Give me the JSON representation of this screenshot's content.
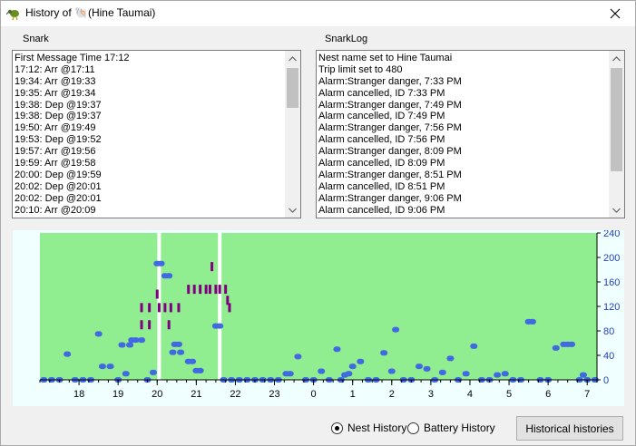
{
  "window": {
    "title": "History of 🐚(Hine Taumai)"
  },
  "snark": {
    "label": "Snark",
    "lines": [
      "First Message Time 17:12",
      "17:12: Arr    @17:11",
      "19:34: Arr     @19:33",
      "19:35: Arr     @19:34",
      "19:38: Dep     @19:37",
      "19:38: Dep     @19:37",
      "19:50: Arr     @19:49",
      "19:53: Dep     @19:52",
      "19:57: Arr     @19:56",
      "19:59: Arr     @19:58",
      "20:00: Dep     @19:59",
      "20:02: Dep     @20:01",
      "20:02: Dep     @20:01",
      "20:10: Arr     @20:09"
    ]
  },
  "snarklog": {
    "label": "SnarkLog",
    "lines": [
      "Nest name set to Hine Taumai",
      "Trip limit set to 480",
      "Alarm:Stranger danger, 7:33 PM",
      "Alarm cancelled, ID   7:33 PM",
      "Alarm:Stranger danger, 7:49 PM",
      "Alarm cancelled, ID   7:49 PM",
      "Alarm:Stranger danger, 7:56 PM",
      "Alarm cancelled, ID   7:56 PM",
      "Alarm:Stranger danger, 8:09 PM",
      "Alarm cancelled, ID   8:09 PM",
      "Alarm:Stranger danger, 8:51 PM",
      "Alarm cancelled, ID   8:51 PM",
      "Alarm:Stranger danger, 9:06 PM",
      "Alarm cancelled, ID   9:06 PM"
    ]
  },
  "chart_data": {
    "type": "scatter",
    "x_ticks": [
      "18",
      "19",
      "20",
      "21",
      "22",
      "23",
      "0",
      "1",
      "2",
      "3",
      "4",
      "5",
      "6",
      "7"
    ],
    "y_ticks": [
      0,
      40,
      80,
      120,
      160,
      200,
      240
    ],
    "ylim": [
      0,
      240
    ],
    "plot_background": "#90ee90",
    "series": [
      {
        "color": "#4169e1",
        "points": [
          [
            17.1,
            0
          ],
          [
            17.3,
            0
          ],
          [
            17.5,
            0
          ],
          [
            17.7,
            42
          ],
          [
            17.9,
            0
          ],
          [
            18.1,
            0
          ],
          [
            18.3,
            0
          ],
          [
            18.5,
            75
          ],
          [
            18.6,
            22
          ],
          [
            18.8,
            22
          ],
          [
            19.0,
            0
          ],
          [
            19.1,
            57
          ],
          [
            19.2,
            10
          ],
          [
            19.3,
            57
          ],
          [
            19.35,
            65
          ],
          [
            19.45,
            65
          ],
          [
            19.6,
            65
          ],
          [
            19.75,
            0
          ],
          [
            19.9,
            12
          ],
          [
            20.0,
            190
          ],
          [
            20.1,
            190
          ],
          [
            20.2,
            170
          ],
          [
            20.3,
            170
          ],
          [
            20.4,
            45
          ],
          [
            20.45,
            58
          ],
          [
            20.55,
            58
          ],
          [
            20.6,
            45
          ],
          [
            20.8,
            30
          ],
          [
            20.9,
            30
          ],
          [
            21.0,
            15
          ],
          [
            21.1,
            15
          ],
          [
            21.5,
            88
          ],
          [
            21.6,
            88
          ],
          [
            21.7,
            0
          ],
          [
            21.9,
            0
          ],
          [
            22.1,
            0
          ],
          [
            22.3,
            0
          ],
          [
            22.5,
            0
          ],
          [
            22.7,
            0
          ],
          [
            22.9,
            0
          ],
          [
            23.1,
            0
          ],
          [
            23.3,
            10
          ],
          [
            23.4,
            10
          ],
          [
            23.6,
            38
          ],
          [
            23.8,
            0
          ],
          [
            24.0,
            0
          ],
          [
            24.2,
            14
          ],
          [
            24.4,
            0
          ],
          [
            24.6,
            50
          ],
          [
            24.7,
            0
          ],
          [
            24.8,
            8
          ],
          [
            24.9,
            10
          ],
          [
            25.0,
            22
          ],
          [
            25.2,
            30
          ],
          [
            25.4,
            0
          ],
          [
            25.6,
            0
          ],
          [
            25.8,
            44
          ],
          [
            26.0,
            14
          ],
          [
            26.1,
            82
          ],
          [
            26.3,
            0
          ],
          [
            26.5,
            0
          ],
          [
            26.7,
            22
          ],
          [
            26.9,
            18
          ],
          [
            27.1,
            0
          ],
          [
            27.3,
            12
          ],
          [
            27.5,
            35
          ],
          [
            27.7,
            0
          ],
          [
            27.9,
            10
          ],
          [
            28.1,
            55
          ],
          [
            28.3,
            0
          ],
          [
            28.5,
            0
          ],
          [
            28.7,
            8
          ],
          [
            28.9,
            10
          ],
          [
            29.1,
            0
          ],
          [
            29.3,
            0
          ],
          [
            29.5,
            95
          ],
          [
            29.6,
            95
          ],
          [
            29.8,
            0
          ],
          [
            30.0,
            0
          ],
          [
            30.2,
            52
          ],
          [
            30.4,
            58
          ],
          [
            30.5,
            58
          ],
          [
            30.6,
            58
          ],
          [
            30.8,
            0
          ],
          [
            30.9,
            8
          ],
          [
            31.0,
            0
          ],
          [
            31.2,
            0
          ]
        ]
      },
      {
        "color": "#800080",
        "points": [
          [
            19.6,
            118
          ],
          [
            19.6,
            90
          ],
          [
            19.8,
            118
          ],
          [
            19.8,
            90
          ],
          [
            20.0,
            140
          ],
          [
            20.05,
            118
          ],
          [
            20.2,
            118
          ],
          [
            20.3,
            90
          ],
          [
            20.35,
            118
          ],
          [
            20.55,
            118
          ],
          [
            20.8,
            148
          ],
          [
            20.95,
            148
          ],
          [
            21.1,
            148
          ],
          [
            21.25,
            148
          ],
          [
            21.35,
            148
          ],
          [
            21.4,
            185
          ],
          [
            21.5,
            148
          ],
          [
            21.6,
            148
          ],
          [
            21.75,
            148
          ],
          [
            21.8,
            130
          ],
          [
            21.85,
            118
          ]
        ]
      }
    ],
    "vertical_markers": [
      20.05,
      21.6
    ]
  },
  "footer": {
    "nest_history": "Nest History",
    "battery_history": "Battery History",
    "historical_histories": "Historical histories",
    "selected": "nest"
  }
}
